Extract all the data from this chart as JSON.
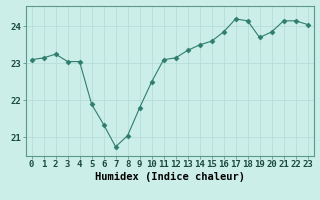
{
  "x": [
    0,
    1,
    2,
    3,
    4,
    5,
    6,
    7,
    8,
    9,
    10,
    11,
    12,
    13,
    14,
    15,
    16,
    17,
    18,
    19,
    20,
    21,
    22,
    23
  ],
  "y": [
    23.1,
    23.15,
    23.25,
    23.05,
    23.05,
    21.9,
    21.35,
    20.75,
    21.05,
    21.8,
    22.5,
    23.1,
    23.15,
    23.35,
    23.5,
    23.6,
    23.85,
    24.2,
    24.15,
    23.7,
    23.85,
    24.15,
    24.15,
    24.05
  ],
  "line_color": "#2e7d6e",
  "marker": "D",
  "marker_size": 2.5,
  "bg_color": "#cceee8",
  "grid_color": "#b8ddd8",
  "xlabel": "Humidex (Indice chaleur)",
  "xlim": [
    -0.5,
    23.5
  ],
  "ylim": [
    20.5,
    24.55
  ],
  "yticks": [
    21,
    22,
    23,
    24
  ],
  "xticks": [
    0,
    1,
    2,
    3,
    4,
    5,
    6,
    7,
    8,
    9,
    10,
    11,
    12,
    13,
    14,
    15,
    16,
    17,
    18,
    19,
    20,
    21,
    22,
    23
  ],
  "xlabel_fontsize": 7.5,
  "tick_fontsize": 6.5
}
